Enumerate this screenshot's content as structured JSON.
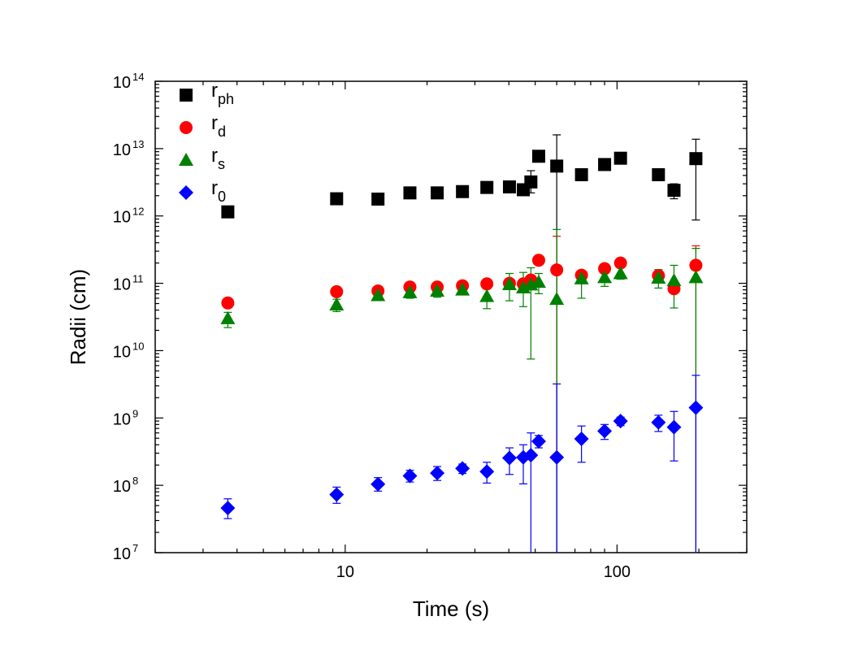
{
  "chart_data": {
    "type": "scatter",
    "title": "",
    "xlabel": "Time (s)",
    "ylabel": "Radii (cm)",
    "x_scale": "log",
    "y_scale": "log",
    "xlim": [
      2,
      300
    ],
    "ylim": [
      10000000.0,
      100000000000000.0
    ],
    "x_ticks": [
      {
        "value": 10,
        "label": "10"
      },
      {
        "value": 100,
        "label": "100"
      }
    ],
    "y_ticks": [
      {
        "value": 10000000.0,
        "base": "10",
        "exp": "7"
      },
      {
        "value": 100000000.0,
        "base": "10",
        "exp": "8"
      },
      {
        "value": 1000000000.0,
        "base": "10",
        "exp": "9"
      },
      {
        "value": 10000000000.0,
        "base": "10",
        "exp": "10"
      },
      {
        "value": 100000000000.0,
        "base": "10",
        "exp": "11"
      },
      {
        "value": 1000000000000.0,
        "base": "10",
        "exp": "12"
      },
      {
        "value": 10000000000000.0,
        "base": "10",
        "exp": "13"
      },
      {
        "value": 100000000000000.0,
        "base": "10",
        "exp": "14"
      }
    ],
    "grid": false,
    "legend_position": "top-left",
    "series": [
      {
        "name": "r_ph",
        "label_main": "r",
        "label_sub": "ph",
        "marker": "square",
        "color": "#000000",
        "points": [
          {
            "x": 3.7,
            "y": 1150000000000.0
          },
          {
            "x": 9.3,
            "y": 1800000000000.0
          },
          {
            "x": 13.2,
            "y": 1780000000000.0
          },
          {
            "x": 17.3,
            "y": 2200000000000.0
          },
          {
            "x": 21.8,
            "y": 2200000000000.0
          },
          {
            "x": 27.0,
            "y": 2300000000000.0
          },
          {
            "x": 33.2,
            "y": 2650000000000.0
          },
          {
            "x": 40.2,
            "y": 2700000000000.0,
            "ylo": 2500000000000.0,
            "yhi": 3000000000000.0
          },
          {
            "x": 45.2,
            "y": 2450000000000.0,
            "ylo": 2100000000000.0,
            "yhi": 2800000000000.0
          },
          {
            "x": 48.2,
            "y": 3200000000000.0,
            "ylo": 2200000000000.0,
            "yhi": 4700000000000.0
          },
          {
            "x": 51.5,
            "y": 7700000000000.0
          },
          {
            "x": 60.0,
            "y": 5500000000000.0,
            "ylo": 10000000.0,
            "yhi": 16000000000000.0
          },
          {
            "x": 74.0,
            "y": 4100000000000.0
          },
          {
            "x": 90.0,
            "y": 5800000000000.0
          },
          {
            "x": 103.0,
            "y": 7200000000000.0
          },
          {
            "x": 142.0,
            "y": 4100000000000.0
          },
          {
            "x": 162.0,
            "y": 2400000000000.0,
            "ylo": 1800000000000.0,
            "yhi": 3000000000000.0
          },
          {
            "x": 195.0,
            "y": 7100000000000.0,
            "ylo": 870000000000.0,
            "yhi": 13800000000000.0
          }
        ]
      },
      {
        "name": "r_d",
        "label_main": "r",
        "label_sub": "d",
        "marker": "circle",
        "color": "#ff0000",
        "points": [
          {
            "x": 3.7,
            "y": 51000000000.0
          },
          {
            "x": 9.3,
            "y": 75000000000.0
          },
          {
            "x": 13.2,
            "y": 77000000000.0
          },
          {
            "x": 17.3,
            "y": 88000000000.0
          },
          {
            "x": 21.8,
            "y": 88000000000.0
          },
          {
            "x": 27.0,
            "y": 92000000000.0
          },
          {
            "x": 33.2,
            "y": 98000000000.0
          },
          {
            "x": 40.2,
            "y": 100000000000.0
          },
          {
            "x": 45.2,
            "y": 98000000000.0
          },
          {
            "x": 48.2,
            "y": 112000000000.0
          },
          {
            "x": 51.5,
            "y": 220000000000.0
          },
          {
            "x": 60.0,
            "y": 158000000000.0,
            "ylo": 10000000.0,
            "yhi": 500000000000.0
          },
          {
            "x": 74.0,
            "y": 132000000000.0
          },
          {
            "x": 90.0,
            "y": 165000000000.0
          },
          {
            "x": 103.0,
            "y": 200000000000.0
          },
          {
            "x": 142.0,
            "y": 130000000000.0
          },
          {
            "x": 162.0,
            "y": 83000000000.0
          },
          {
            "x": 195.0,
            "y": 185000000000.0,
            "ylo": 10000000.0,
            "yhi": 360000000000.0
          }
        ]
      },
      {
        "name": "r_s",
        "label_main": "r",
        "label_sub": "s",
        "marker": "triangle",
        "color": "#008000",
        "points": [
          {
            "x": 3.7,
            "y": 30000000000.0,
            "ylo": 22000000000.0,
            "yhi": 37000000000.0
          },
          {
            "x": 9.3,
            "y": 48000000000.0,
            "ylo": 38000000000.0,
            "yhi": 58000000000.0
          },
          {
            "x": 13.2,
            "y": 66000000000.0,
            "ylo": 56000000000.0,
            "yhi": 77000000000.0
          },
          {
            "x": 17.3,
            "y": 73000000000.0,
            "ylo": 60000000000.0,
            "yhi": 88000000000.0
          },
          {
            "x": 21.8,
            "y": 77000000000.0,
            "ylo": 62000000000.0,
            "yhi": 93000000000.0
          },
          {
            "x": 27.0,
            "y": 80000000000.0,
            "ylo": 68000000000.0,
            "yhi": 95000000000.0
          },
          {
            "x": 33.2,
            "y": 64000000000.0,
            "ylo": 42000000000.0,
            "yhi": 85000000000.0
          },
          {
            "x": 40.2,
            "y": 96000000000.0,
            "ylo": 55000000000.0,
            "yhi": 140000000000.0
          },
          {
            "x": 45.2,
            "y": 86000000000.0,
            "ylo": 45000000000.0,
            "yhi": 145000000000.0
          },
          {
            "x": 48.2,
            "y": 95000000000.0,
            "ylo": 7500000000.0,
            "yhi": 170000000000.0
          },
          {
            "x": 51.5,
            "y": 104000000000.0,
            "ylo": 70000000000.0,
            "yhi": 140000000000.0
          },
          {
            "x": 60.0,
            "y": 58000000000.0,
            "ylo": 10000000.0,
            "yhi": 630000000000.0
          },
          {
            "x": 74.0,
            "y": 117000000000.0,
            "ylo": 60000000000.0,
            "yhi": 150000000000.0
          },
          {
            "x": 90.0,
            "y": 122000000000.0,
            "ylo": 90000000000.0,
            "yhi": 155000000000.0
          },
          {
            "x": 103.0,
            "y": 140000000000.0,
            "ylo": 115000000000.0,
            "yhi": 175000000000.0
          },
          {
            "x": 142.0,
            "y": 120000000000.0,
            "ylo": 85000000000.0,
            "yhi": 160000000000.0
          },
          {
            "x": 162.0,
            "y": 110000000000.0,
            "ylo": 43000000000.0,
            "yhi": 185000000000.0
          },
          {
            "x": 195.0,
            "y": 122000000000.0,
            "ylo": 10000000.0,
            "yhi": 330000000000.0
          }
        ]
      },
      {
        "name": "r_0",
        "label_main": "r",
        "label_sub": "0",
        "marker": "diamond",
        "color": "#0000ff",
        "points": [
          {
            "x": 3.7,
            "y": 46000000.0,
            "ylo": 32000000.0,
            "yhi": 63000000.0
          },
          {
            "x": 9.3,
            "y": 73000000.0,
            "ylo": 54000000.0,
            "yhi": 94000000.0
          },
          {
            "x": 13.2,
            "y": 104000000.0,
            "ylo": 82000000.0,
            "yhi": 130000000.0
          },
          {
            "x": 17.3,
            "y": 138000000.0,
            "ylo": 112000000.0,
            "yhi": 167000000.0
          },
          {
            "x": 21.8,
            "y": 152000000.0,
            "ylo": 118000000.0,
            "yhi": 190000000.0
          },
          {
            "x": 27.0,
            "y": 178000000.0,
            "ylo": 150000000.0,
            "yhi": 207000000.0
          },
          {
            "x": 33.2,
            "y": 160000000.0,
            "ylo": 108000000.0,
            "yhi": 220000000.0
          },
          {
            "x": 40.2,
            "y": 255000000.0,
            "ylo": 145000000.0,
            "yhi": 360000000.0
          },
          {
            "x": 45.2,
            "y": 260000000.0,
            "ylo": 105000000.0,
            "yhi": 400000000.0
          },
          {
            "x": 48.2,
            "y": 280000000.0,
            "ylo": 10000000.0,
            "yhi": 600000000.0
          },
          {
            "x": 51.5,
            "y": 450000000.0,
            "ylo": 360000000.0,
            "yhi": 550000000.0
          },
          {
            "x": 60.0,
            "y": 260000000.0,
            "ylo": 10000000.0,
            "yhi": 3200000000.0
          },
          {
            "x": 74.0,
            "y": 490000000.0,
            "ylo": 220000000.0,
            "yhi": 760000000.0
          },
          {
            "x": 90.0,
            "y": 640000000.0,
            "ylo": 480000000.0,
            "yhi": 800000000.0
          },
          {
            "x": 103.0,
            "y": 900000000.0,
            "ylo": 770000000.0,
            "yhi": 1030000000.0
          },
          {
            "x": 142.0,
            "y": 860000000.0,
            "ylo": 630000000.0,
            "yhi": 1100000000.0
          },
          {
            "x": 162.0,
            "y": 730000000.0,
            "ylo": 230000000.0,
            "yhi": 1250000000.0
          },
          {
            "x": 195.0,
            "y": 1420000000.0,
            "ylo": 10000000.0,
            "yhi": 4300000000.0
          }
        ]
      }
    ]
  }
}
